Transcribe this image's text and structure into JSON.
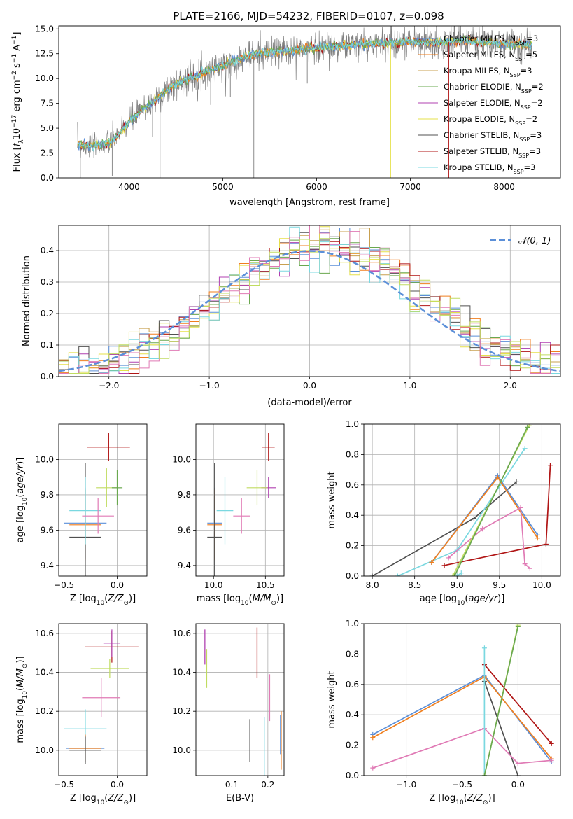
{
  "figure_title": "PLATE=2166, MJD=54232, FIBERID=0107, z=0.098",
  "colors": {
    "chabrier_miles": "#5b8fd8",
    "salpeter_miles": "#f07f1e",
    "kroupa_miles": "#c8a050",
    "chabrier_elodie": "#6aa84f",
    "salpeter_elodie": "#b040b0",
    "kroupa_elodie": "#e5e04a",
    "chabrier_stelib": "#505050",
    "salpeter_stelib": "#b01515",
    "kroupa_stelib": "#7ad8e0",
    "pink": "#e07ab5",
    "lime": "#c0dc60",
    "data_gray": "#808080",
    "normal_curve": "#5b8fd8",
    "grid": "#b0b0b0"
  },
  "chart_data": [
    {
      "id": "spectrum",
      "type": "line",
      "xlabel": "wavelength [Angstrom, rest frame]",
      "ylabel": "Flux [f_λ 10^-17 erg cm^-2 s^-1 A^-1]",
      "xlim": [
        3250,
        8600
      ],
      "ylim": [
        0,
        15.3
      ],
      "xticks": [
        4000,
        5000,
        6000,
        7000,
        8000
      ],
      "yticks": [
        0.0,
        2.5,
        5.0,
        7.5,
        10.0,
        12.5,
        15.0
      ],
      "grid": false,
      "legend_position": "top-right",
      "legend": [
        {
          "label": "Chabrier MILES, N",
          "sub": "SSP",
          "tail": "=3",
          "color_key": "chabrier_miles"
        },
        {
          "label": "Salpeter MILES, N",
          "sub": "SSP",
          "tail": "=5",
          "color_key": "salpeter_miles"
        },
        {
          "label": "Kroupa MILES, N",
          "sub": "SSP",
          "tail": "=3",
          "color_key": "kroupa_miles"
        },
        {
          "label": "Chabrier ELODIE, N",
          "sub": "SSP",
          "tail": "=2",
          "color_key": "chabrier_elodie"
        },
        {
          "label": "Salpeter ELODIE, N",
          "sub": "SSP",
          "tail": "=2",
          "color_key": "salpeter_elodie"
        },
        {
          "label": "Kroupa ELODIE, N",
          "sub": "SSP",
          "tail": "=2",
          "color_key": "kroupa_elodie"
        },
        {
          "label": "Chabrier STELIB, N",
          "sub": "SSP",
          "tail": "=3",
          "color_key": "chabrier_stelib"
        },
        {
          "label": "Salpeter STELIB, N",
          "sub": "SSP",
          "tail": "=3",
          "color_key": "salpeter_stelib"
        },
        {
          "label": "Kroupa STELIB, N",
          "sub": "SSP",
          "tail": "=3",
          "color_key": "kroupa_stelib"
        }
      ],
      "continuum": {
        "x": [
          3450,
          3600,
          3800,
          4000,
          4100,
          4300,
          4500,
          4800,
          5000,
          5200,
          5400,
          5600,
          5800,
          6000,
          6200,
          6400,
          6600,
          6800,
          7000,
          7200,
          7400,
          7600,
          7800,
          8000,
          8200
        ],
        "y": [
          3.3,
          3.2,
          3.5,
          5.6,
          6.5,
          8.0,
          9.5,
          10.6,
          11.3,
          12.1,
          12.5,
          12.7,
          12.9,
          13.1,
          13.2,
          13.4,
          13.5,
          13.6,
          13.7,
          13.6,
          13.7,
          13.8,
          13.6,
          13.5,
          13.4
        ]
      },
      "data_x_range": [
        3450,
        8300
      ],
      "vertical_spikes": [
        3480,
        3820,
        4250,
        4330,
        4870,
        5080,
        5330,
        5900,
        6790,
        7410
      ]
    },
    {
      "id": "residuals",
      "type": "histogram",
      "xlabel": "(data-model)/error",
      "ylabel": "Normed distribution",
      "xlim": [
        -2.5,
        2.5
      ],
      "ylim": [
        0,
        0.48
      ],
      "xticks": [
        -2,
        -1,
        0,
        1,
        2
      ],
      "yticks": [
        0.0,
        0.1,
        0.2,
        0.3,
        0.4
      ],
      "grid": true,
      "legend_position": "top-right",
      "legend": [
        {
          "label": "𝒩(0, 1)",
          "color_key": "normal_curve"
        }
      ],
      "bin_edges_range": [
        -2.5,
        2.5
      ],
      "bin_count": 50,
      "normal_curve": {
        "mean": 0,
        "sigma": 1
      },
      "series_color_keys": [
        "chabrier_miles",
        "salpeter_miles",
        "kroupa_miles",
        "chabrier_elodie",
        "salpeter_elodie",
        "kroupa_elodie",
        "chabrier_stelib",
        "salpeter_stelib",
        "kroupa_stelib",
        "pink",
        "lime"
      ]
    },
    {
      "id": "age_vs_z",
      "type": "errorbar",
      "xlabel": "Z [log10(Z/Z_sun)]",
      "ylabel": "age  [log10(age/yr)]",
      "xlim": [
        -0.55,
        0.28
      ],
      "ylim": [
        9.34,
        10.2
      ],
      "xticks": [
        -0.5,
        0.0
      ],
      "yticks": [
        9.4,
        9.6,
        9.8,
        10.0
      ],
      "grid": true,
      "points": [
        {
          "x": -0.08,
          "y": 10.07,
          "xerr": 0.2,
          "yerr": 0.08,
          "color_key": "salpeter_stelib"
        },
        {
          "x": -0.3,
          "y": 9.64,
          "xerr": 0.2,
          "yerr": 0.2,
          "color_key": "chabrier_miles"
        },
        {
          "x": -0.3,
          "y": 9.63,
          "xerr": 0.15,
          "yerr": 0.2,
          "color_key": "salpeter_miles"
        },
        {
          "x": -0.3,
          "y": 9.56,
          "xerr": 0.15,
          "yerr": 0.42,
          "color_key": "chabrier_stelib"
        },
        {
          "x": -0.3,
          "y": 9.71,
          "xerr": 0.15,
          "yerr": 0.19,
          "color_key": "kroupa_stelib"
        },
        {
          "x": -0.1,
          "y": 9.84,
          "xerr": 0.1,
          "yerr": 0.11,
          "color_key": "lime"
        },
        {
          "x": -0.18,
          "y": 9.68,
          "xerr": 0.15,
          "yerr": 0.1,
          "color_key": "pink"
        },
        {
          "x": 0.0,
          "y": 9.84,
          "xerr": 0.05,
          "yerr": 0.1,
          "color_key": "chabrier_elodie"
        }
      ]
    },
    {
      "id": "age_vs_mass",
      "type": "errorbar",
      "xlabel": "mass [log10(M/M_sun)]",
      "ylabel": "",
      "xlim": [
        9.83,
        10.68
      ],
      "ylim": [
        9.34,
        10.2
      ],
      "xticks": [
        10.0,
        10.5
      ],
      "yticks": [
        9.4,
        9.6,
        9.8,
        10.0
      ],
      "grid": true,
      "points": [
        {
          "x": 10.53,
          "y": 10.07,
          "xerr": 0.06,
          "yerr": 0.08,
          "color_key": "salpeter_stelib"
        },
        {
          "x": 10.53,
          "y": 9.84,
          "xerr": 0.07,
          "yerr": 0.06,
          "color_key": "salpeter_elodie"
        },
        {
          "x": 10.42,
          "y": 9.84,
          "xerr": 0.1,
          "yerr": 0.1,
          "color_key": "lime"
        },
        {
          "x": 10.27,
          "y": 9.68,
          "xerr": 0.08,
          "yerr": 0.1,
          "color_key": "pink"
        },
        {
          "x": 10.11,
          "y": 9.71,
          "xerr": 0.08,
          "yerr": 0.19,
          "color_key": "kroupa_stelib"
        },
        {
          "x": 10.01,
          "y": 9.64,
          "xerr": 0.07,
          "yerr": 0.2,
          "color_key": "chabrier_miles"
        },
        {
          "x": 10.01,
          "y": 9.63,
          "xerr": 0.07,
          "yerr": 0.2,
          "color_key": "salpeter_miles"
        },
        {
          "x": 10.01,
          "y": 9.56,
          "xerr": 0.07,
          "yerr": 0.42,
          "color_key": "chabrier_stelib"
        }
      ]
    },
    {
      "id": "weight_vs_age",
      "type": "line",
      "xlabel": "age  [log10(age/yr)]",
      "ylabel": "mass weight",
      "xlim": [
        7.9,
        10.22
      ],
      "ylim": [
        0,
        1.0
      ],
      "xticks": [
        8.0,
        8.5,
        9.0,
        9.5,
        10.0
      ],
      "yticks": [
        0.0,
        0.2,
        0.4,
        0.6,
        0.8,
        1.0
      ],
      "grid": true,
      "series": [
        {
          "color_key": "chabrier_stelib",
          "x": [
            8.0,
            9.2,
            9.7
          ],
          "y": [
            0.0,
            0.38,
            0.62
          ]
        },
        {
          "color_key": "kroupa_stelib",
          "x": [
            8.3,
            9.0,
            9.8
          ],
          "y": [
            0.0,
            0.17,
            0.84
          ]
        },
        {
          "color_key": "salpeter_stelib",
          "x": [
            8.85,
            10.05,
            10.1
          ],
          "y": [
            0.07,
            0.21,
            0.73
          ]
        },
        {
          "color_key": "chabrier_miles",
          "x": [
            8.7,
            9.48,
            9.95
          ],
          "y": [
            0.09,
            0.66,
            0.27
          ]
        },
        {
          "color_key": "salpeter_miles",
          "x": [
            8.7,
            9.48,
            9.95
          ],
          "y": [
            0.09,
            0.65,
            0.25
          ]
        },
        {
          "color_key": "pink",
          "x": [
            8.9,
            9.3,
            9.75,
            9.8,
            9.86
          ],
          "y": [
            0.12,
            0.31,
            0.45,
            0.08,
            0.05
          ]
        },
        {
          "color_key": "lime",
          "x": [
            8.95,
            9.85
          ],
          "y": [
            0.0,
            0.99
          ]
        },
        {
          "color_key": "chabrier_elodie",
          "x": [
            8.97,
            9.83
          ],
          "y": [
            0.0,
            0.98
          ]
        },
        {
          "color_key": "kroupa_stelib",
          "x": [
            9.0,
            9.05
          ],
          "y": [
            0.0,
            0.02
          ]
        }
      ]
    },
    {
      "id": "mass_vs_z",
      "type": "errorbar",
      "xlabel": "Z [log10(Z/Z_sun)]",
      "ylabel": "mass [log10(M/M_sun)]",
      "xlim": [
        -0.55,
        0.28
      ],
      "ylim": [
        9.87,
        10.65
      ],
      "xticks": [
        -0.5,
        0.0
      ],
      "yticks": [
        10.0,
        10.2,
        10.4,
        10.6
      ],
      "grid": true,
      "points": [
        {
          "x": -0.05,
          "y": 10.53,
          "xerr": 0.25,
          "yerr": 0.08,
          "color_key": "salpeter_stelib"
        },
        {
          "x": -0.05,
          "y": 10.55,
          "xerr": 0.08,
          "yerr": 0.07,
          "color_key": "salpeter_elodie"
        },
        {
          "x": -0.07,
          "y": 10.42,
          "xerr": 0.18,
          "yerr": 0.05,
          "color_key": "lime"
        },
        {
          "x": -0.15,
          "y": 10.27,
          "xerr": 0.18,
          "yerr": 0.1,
          "color_key": "pink"
        },
        {
          "x": -0.3,
          "y": 10.11,
          "xerr": 0.2,
          "yerr": 0.1,
          "color_key": "kroupa_stelib"
        },
        {
          "x": -0.3,
          "y": 10.01,
          "xerr": 0.18,
          "yerr": 0.07,
          "color_key": "chabrier_miles"
        },
        {
          "x": -0.3,
          "y": 10.01,
          "xerr": 0.15,
          "yerr": 0.07,
          "color_key": "salpeter_miles"
        },
        {
          "x": -0.3,
          "y": 10.0,
          "xerr": 0.15,
          "yerr": 0.07,
          "color_key": "chabrier_stelib"
        }
      ]
    },
    {
      "id": "mass_vs_ebv",
      "type": "errorbar",
      "xlabel": "E(B-V)",
      "ylabel": "",
      "xlim": [
        0.0,
        0.245
      ],
      "ylim": [
        9.87,
        10.65
      ],
      "xticks": [
        0.1,
        0.2
      ],
      "yticks": [
        10.0,
        10.2,
        10.4,
        10.6
      ],
      "grid": true,
      "points": [
        {
          "x": 0.025,
          "y": 10.53,
          "xerr": 0.0,
          "yerr": 0.09,
          "color_key": "salpeter_elodie"
        },
        {
          "x": 0.03,
          "y": 10.42,
          "xerr": 0.0,
          "yerr": 0.1,
          "color_key": "lime"
        },
        {
          "x": 0.17,
          "y": 10.5,
          "xerr": 0.0,
          "yerr": 0.13,
          "color_key": "salpeter_stelib"
        },
        {
          "x": 0.205,
          "y": 10.27,
          "xerr": 0.0,
          "yerr": 0.12,
          "color_key": "pink"
        },
        {
          "x": 0.15,
          "y": 10.05,
          "xerr": 0.0,
          "yerr": 0.11,
          "color_key": "chabrier_stelib"
        },
        {
          "x": 0.19,
          "y": 10.01,
          "xerr": 0.0,
          "yerr": 0.16,
          "color_key": "kroupa_stelib"
        },
        {
          "x": 0.237,
          "y": 10.05,
          "xerr": 0.0,
          "yerr": 0.15,
          "color_key": "salpeter_miles"
        },
        {
          "x": 0.235,
          "y": 10.08,
          "xerr": 0.0,
          "yerr": 0.1,
          "color_key": "chabrier_miles"
        }
      ]
    },
    {
      "id": "weight_vs_z",
      "type": "line",
      "xlabel": "Z [log10(Z/Z_sun)]",
      "ylabel": "mass weight",
      "xlim": [
        -1.38,
        0.38
      ],
      "ylim": [
        0,
        1.0
      ],
      "xticks": [
        -1.0,
        -0.5,
        0.0
      ],
      "yticks": [
        0.0,
        0.2,
        0.4,
        0.6,
        0.8,
        1.0
      ],
      "grid": true,
      "series": [
        {
          "color_key": "chabrier_miles",
          "x": [
            -1.3,
            -0.3,
            0.3
          ],
          "y": [
            0.27,
            0.66,
            0.09
          ]
        },
        {
          "color_key": "salpeter_miles",
          "x": [
            -1.3,
            -0.3,
            0.3
          ],
          "y": [
            0.25,
            0.65,
            0.11
          ]
        },
        {
          "color_key": "salpeter_stelib",
          "x": [
            -0.3,
            0.3
          ],
          "y": [
            0.73,
            0.21
          ]
        },
        {
          "color_key": "chabrier_stelib",
          "x": [
            -0.3,
            0.0
          ],
          "y": [
            0.62,
            0.0
          ]
        },
        {
          "color_key": "pink",
          "x": [
            -1.3,
            -0.3,
            0.0,
            0.3
          ],
          "y": [
            0.05,
            0.31,
            0.08,
            0.1
          ]
        },
        {
          "color_key": "kroupa_stelib",
          "x": [
            -0.3,
            -0.3
          ],
          "y": [
            0.0,
            0.84
          ]
        },
        {
          "color_key": "lime",
          "x": [
            -0.3,
            0.0
          ],
          "y": [
            0.0,
            0.99
          ]
        },
        {
          "color_key": "chabrier_elodie",
          "x": [
            -0.3,
            0.0
          ],
          "y": [
            0.0,
            0.98
          ]
        }
      ]
    }
  ]
}
